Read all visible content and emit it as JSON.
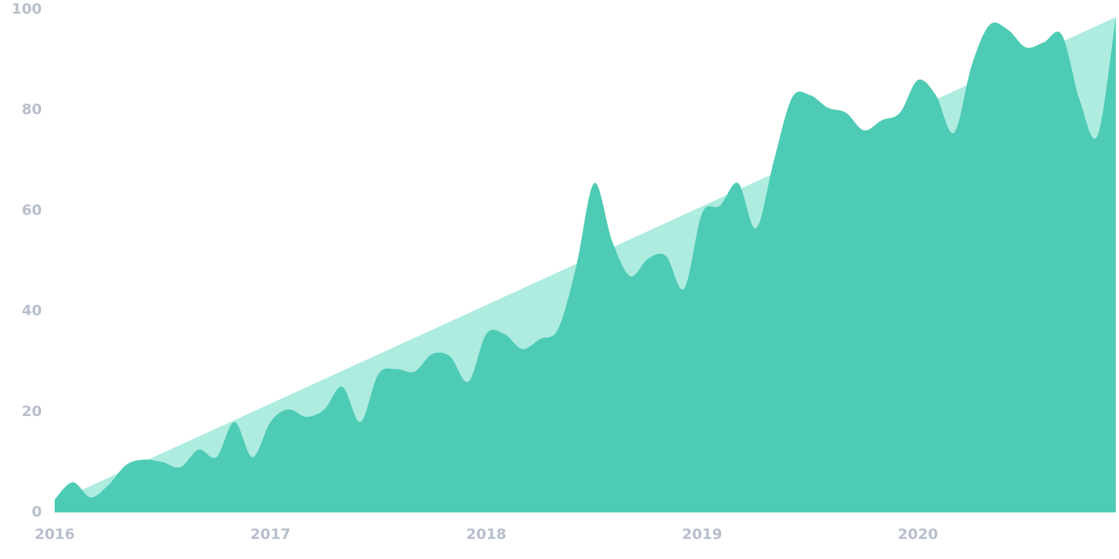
{
  "chart_data": {
    "type": "area",
    "series": [
      {
        "color": "#aeece0",
        "x": [
          2016,
          2020.917
        ],
        "values": [
          2,
          98.5
        ]
      },
      {
        "color": "#4ecbb4",
        "x": [
          2016,
          2016.083,
          2016.167,
          2016.25,
          2016.333,
          2016.417,
          2016.5,
          2016.583,
          2016.667,
          2016.75,
          2016.833,
          2016.917,
          2017,
          2017.083,
          2017.167,
          2017.25,
          2017.333,
          2017.417,
          2017.5,
          2017.583,
          2017.667,
          2017.75,
          2017.833,
          2017.917,
          2018,
          2018.083,
          2018.167,
          2018.25,
          2018.333,
          2018.417,
          2018.5,
          2018.583,
          2018.667,
          2018.75,
          2018.833,
          2018.917,
          2019,
          2019.083,
          2019.167,
          2019.25,
          2019.333,
          2019.417,
          2019.5,
          2019.583,
          2019.667,
          2019.75,
          2019.833,
          2019.917,
          2020,
          2020.083,
          2020.167,
          2020.25,
          2020.333,
          2020.417,
          2020.5,
          2020.583,
          2020.667,
          2020.75,
          2020.833,
          2020.917
        ],
        "values": [
          2.6,
          6,
          3,
          5.5,
          9.5,
          10.5,
          10,
          9,
          12.5,
          11,
          18,
          11,
          18,
          20.5,
          19,
          20.5,
          25,
          18,
          27.5,
          28.5,
          28,
          31.5,
          31,
          26,
          35.5,
          35.5,
          32.5,
          34.5,
          36.5,
          49,
          65.5,
          54,
          47,
          50.5,
          51,
          44.5,
          59.5,
          61,
          65.5,
          56.5,
          70,
          82.5,
          83,
          80.5,
          79.5,
          76,
          78,
          79.5,
          86,
          83,
          75.5,
          89,
          97,
          96,
          92.5,
          93.5,
          95,
          82,
          75,
          98.5
        ]
      }
    ],
    "xlim": [
      2016,
      2020.917
    ],
    "xticks": [
      2016,
      2017,
      2018,
      2019,
      2020
    ],
    "ylim": [
      0,
      100
    ],
    "yticks": [
      0,
      20,
      40,
      60,
      80,
      100
    ]
  }
}
